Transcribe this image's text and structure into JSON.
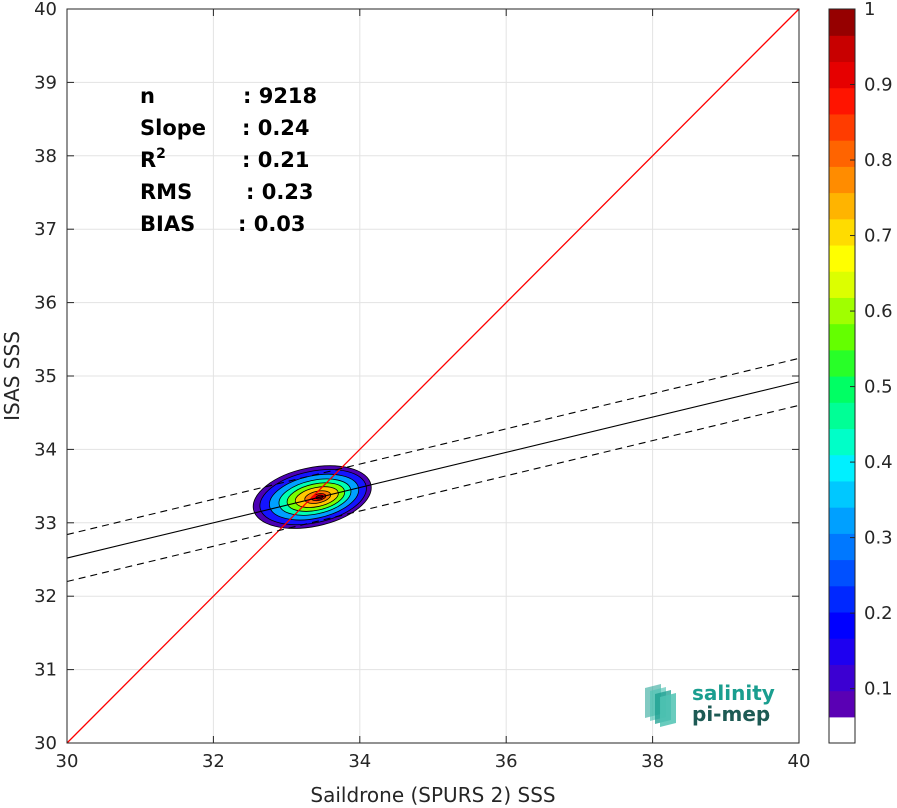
{
  "chart_data": {
    "type": "scatter",
    "subtype": "density-contour",
    "xlabel": "Saildrone (SPURS 2) SSS",
    "ylabel": "ISAS SSS",
    "xlim": [
      30,
      40
    ],
    "ylim": [
      30,
      40
    ],
    "xticks": [
      "30",
      "32",
      "34",
      "36",
      "38",
      "40"
    ],
    "yticks": [
      "30",
      "31",
      "32",
      "33",
      "34",
      "35",
      "36",
      "37",
      "38",
      "39",
      "40"
    ],
    "grid": true,
    "identity_line": {
      "x": [
        30,
        40
      ],
      "y": [
        30,
        40
      ],
      "color": "#ff0000"
    },
    "regression_line": {
      "x": [
        30,
        40
      ],
      "y": [
        32.52,
        34.92
      ],
      "color": "#000000"
    },
    "upper_band": {
      "x": [
        30,
        40
      ],
      "y": [
        32.84,
        35.24
      ],
      "style": "dashed"
    },
    "lower_band": {
      "x": [
        30,
        40
      ],
      "y": [
        32.2,
        34.6
      ],
      "style": "dashed"
    },
    "density": {
      "center": [
        33.35,
        33.35
      ],
      "peak": [
        33.45,
        33.35
      ],
      "levels": [
        {
          "level": 0.05,
          "color": "#4b00b4",
          "rx": 0.82,
          "ry": 0.4
        },
        {
          "level": 0.15,
          "color": "#1414ff",
          "rx": 0.74,
          "ry": 0.35
        },
        {
          "level": 0.3,
          "color": "#00a0ff",
          "rx": 0.62,
          "ry": 0.29
        },
        {
          "level": 0.45,
          "color": "#00ffb4",
          "rx": 0.5,
          "ry": 0.23
        },
        {
          "level": 0.55,
          "color": "#78ff00",
          "rx": 0.4,
          "ry": 0.18
        },
        {
          "level": 0.7,
          "color": "#ffc800",
          "rx": 0.3,
          "ry": 0.13
        },
        {
          "level": 0.8,
          "color": "#ff7800",
          "rx": 0.18,
          "ry": 0.08
        },
        {
          "level": 0.9,
          "color": "#ff0000",
          "rx": 0.1,
          "ry": 0.045
        },
        {
          "level": 1.0,
          "color": "#960000",
          "rx": 0.05,
          "ry": 0.025
        }
      ]
    },
    "stats": [
      {
        "label": "n",
        "value": ": 9218"
      },
      {
        "label": "Slope",
        "value": ": 0.24"
      },
      {
        "label": "R",
        "sup": "2",
        "value": ": 0.21"
      },
      {
        "label": "RMS",
        "value": ": 0.23"
      },
      {
        "label": "BIAS",
        "value": ": 0.03"
      }
    ],
    "colorbar": {
      "ticks": [
        "0.1",
        "0.2",
        "0.3",
        "0.4",
        "0.5",
        "0.6",
        "0.7",
        "0.8",
        "0.9",
        "1"
      ],
      "tick_values": [
        0.1,
        0.2,
        0.3,
        0.4,
        0.5,
        0.6,
        0.7,
        0.8,
        0.9,
        1.0
      ],
      "colors": [
        "#ffffff",
        "#5a00b4",
        "#3c00d2",
        "#1e00f0",
        "#0000ff",
        "#0028ff",
        "#0050ff",
        "#0078ff",
        "#00a0ff",
        "#00c8ff",
        "#00f0ff",
        "#00ffc8",
        "#00ff96",
        "#00ff64",
        "#28ff28",
        "#64ff00",
        "#a0ff00",
        "#dcff00",
        "#ffff00",
        "#ffdc00",
        "#ffb400",
        "#ff8c00",
        "#ff6400",
        "#ff3c00",
        "#ff1400",
        "#e60000",
        "#c80000",
        "#960000"
      ]
    }
  },
  "logo": {
    "line1": "salinity",
    "line2": "pi-mep",
    "color": "#1a9e8f"
  }
}
